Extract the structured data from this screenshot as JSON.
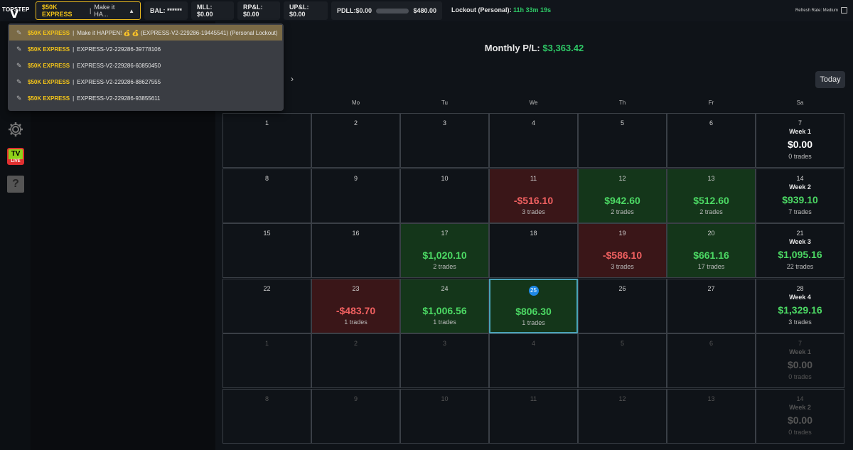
{
  "logo": {
    "brand": "TOPSTEP",
    "mark": "V"
  },
  "account_select": {
    "type": "$50K EXPRESS",
    "name": "Make it HA..."
  },
  "stats": {
    "bal": "BAL: ******",
    "mll": "MLL: $0.00",
    "rpl": "RP&L: $0.00",
    "upl": "UP&L: $0.00",
    "pdll_label": "PDLL:$0.00",
    "pdll_max": "$480.00"
  },
  "lockout": {
    "label": "Lockout (Personal):",
    "value": "11h 33m 19s"
  },
  "refresh": {
    "label": "Refresh Rate: Medium"
  },
  "sidebar": {
    "tv": "TV",
    "live": "LIVE",
    "help": "?"
  },
  "monthly": {
    "label": "Monthly P/L:",
    "value": "$3,363.42"
  },
  "today_label": "Today",
  "nav_next": "›",
  "weekdays": [
    "Mo",
    "Tu",
    "We",
    "Th",
    "Fr",
    "Sa"
  ],
  "dropdown": [
    {
      "type": "$50K EXPRESS",
      "name": "Make it HAPPEN! 💰 💰 (EXPRESS-V2-229286-19445541) (Personal Lockout)",
      "active": true
    },
    {
      "type": "$50K EXPRESS",
      "name": "EXPRESS-V2-229286-39778106",
      "active": false
    },
    {
      "type": "$50K EXPRESS",
      "name": "EXPRESS-V2-229286-60850450",
      "active": false
    },
    {
      "type": "$50K EXPRESS",
      "name": "EXPRESS-V2-229286-88627555",
      "active": false
    },
    {
      "type": "$50K EXPRESS",
      "name": "EXPRESS-V2-229286-93855611",
      "active": false
    }
  ],
  "calendar": [
    [
      {
        "day": "1"
      },
      {
        "day": "2"
      },
      {
        "day": "3"
      },
      {
        "day": "4"
      },
      {
        "day": "5"
      },
      {
        "day": "6"
      },
      {
        "day": "7",
        "week": "Week 1",
        "amt": "$0.00",
        "trades": "0 trades"
      }
    ],
    [
      {
        "day": "8"
      },
      {
        "day": "9"
      },
      {
        "day": "10"
      },
      {
        "day": "11",
        "amt": "-$516.10",
        "trades": "3 trades",
        "kind": "neg"
      },
      {
        "day": "12",
        "amt": "$942.60",
        "trades": "2 trades",
        "kind": "pos"
      },
      {
        "day": "13",
        "amt": "$512.60",
        "trades": "2 trades",
        "kind": "pos"
      },
      {
        "day": "14",
        "week": "Week 2",
        "amt": "$939.10",
        "trades": "7 trades",
        "g": true
      }
    ],
    [
      {
        "day": "15"
      },
      {
        "day": "16"
      },
      {
        "day": "17",
        "amt": "$1,020.10",
        "trades": "2 trades",
        "kind": "pos"
      },
      {
        "day": "18"
      },
      {
        "day": "19",
        "amt": "-$586.10",
        "trades": "3 trades",
        "kind": "neg"
      },
      {
        "day": "20",
        "amt": "$661.16",
        "trades": "17 trades",
        "kind": "pos"
      },
      {
        "day": "21",
        "week": "Week 3",
        "amt": "$1,095.16",
        "trades": "22 trades",
        "g": true
      }
    ],
    [
      {
        "day": "22"
      },
      {
        "day": "23",
        "amt": "-$483.70",
        "trades": "1 trades",
        "kind": "neg"
      },
      {
        "day": "24",
        "amt": "$1,006.56",
        "trades": "1 trades",
        "kind": "pos"
      },
      {
        "day": "25",
        "amt": "$806.30",
        "trades": "1 trades",
        "kind": "pos",
        "sel": true
      },
      {
        "day": "26"
      },
      {
        "day": "27"
      },
      {
        "day": "28",
        "week": "Week 4",
        "amt": "$1,329.16",
        "trades": "3 trades",
        "g": true
      }
    ],
    [
      {
        "day": "1",
        "dim": true
      },
      {
        "day": "2",
        "dim": true
      },
      {
        "day": "3",
        "dim": true
      },
      {
        "day": "4",
        "dim": true
      },
      {
        "day": "5",
        "dim": true
      },
      {
        "day": "6",
        "dim": true
      },
      {
        "day": "7",
        "week": "Week 1",
        "amt": "$0.00",
        "trades": "0 trades",
        "dim": true
      }
    ],
    [
      {
        "day": "8",
        "dim": true
      },
      {
        "day": "9",
        "dim": true
      },
      {
        "day": "10",
        "dim": true
      },
      {
        "day": "11",
        "dim": true
      },
      {
        "day": "12",
        "dim": true
      },
      {
        "day": "13",
        "dim": true
      },
      {
        "day": "14",
        "week": "Week 2",
        "amt": "$0.00",
        "trades": "0 trades",
        "dim": true
      }
    ]
  ]
}
